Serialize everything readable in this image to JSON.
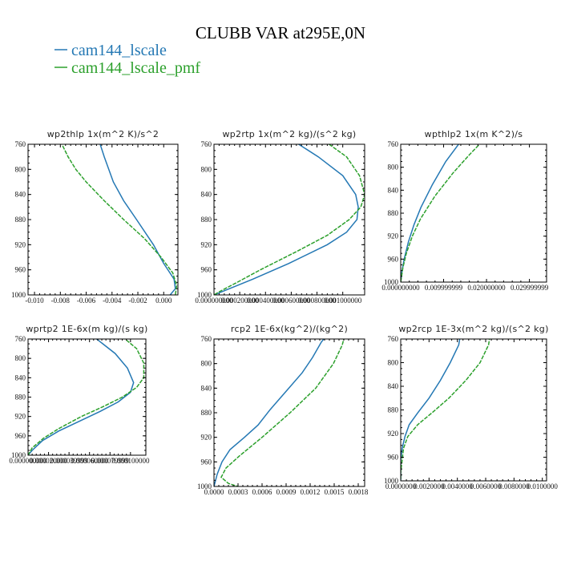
{
  "title": "CLUBB VAR at295E,0N",
  "legend": [
    {
      "name": "cam144_lscale",
      "color": "#2478b4",
      "dash": false
    },
    {
      "name": "cam144_lscale_pmf",
      "color": "#2ca02c",
      "dash": true
    }
  ],
  "chart_data": [
    {
      "type": "line",
      "title": "wp2thlp  1x(m^2 K)/s^2",
      "xlim": [
        -0.0105,
        0.0011
      ],
      "ylim": [
        760,
        1000
      ],
      "y_reversed": true,
      "xticks": [
        -0.01,
        -0.008,
        -0.006,
        -0.004,
        -0.002,
        0.0
      ],
      "xtick_labels": [
        "-0.010",
        "-0.008",
        "-0.006",
        "-0.004",
        "-0.002",
        "0.000"
      ],
      "yticks": [
        760,
        800,
        840,
        880,
        920,
        960,
        1000
      ],
      "series": [
        {
          "name": "cam144_lscale",
          "y": [
            755,
            780,
            820,
            850,
            880,
            920,
            950,
            975,
            990,
            1000
          ],
          "x": [
            -0.005,
            -0.0046,
            -0.0039,
            -0.0031,
            -0.0021,
            -0.0008,
            0.0,
            0.0008,
            0.0009,
            0.0005
          ]
        },
        {
          "name": "cam144_lscale_pmf",
          "y": [
            755,
            780,
            800,
            820,
            850,
            880,
            910,
            940,
            965,
            985,
            1000
          ],
          "x": [
            -0.008,
            -0.0074,
            -0.0068,
            -0.006,
            -0.0046,
            -0.0031,
            -0.0015,
            -0.0002,
            0.0007,
            0.001,
            0.0009
          ]
        }
      ]
    },
    {
      "type": "line",
      "title": "wp2rtp  1x(m^2 kg)/(s^2 kg)",
      "xlim": [
        0,
        0.00117
      ],
      "ylim": [
        760,
        1000
      ],
      "y_reversed": true,
      "xticks": [
        0,
        0.0002,
        0.0004,
        0.0006,
        0.0008,
        0.001
      ],
      "xtick_labels": [
        "0.000000000",
        "0.000200000",
        "0.000400000",
        "0.000600000",
        "0.000800000",
        "0.001000000"
      ],
      "yticks": [
        760,
        800,
        840,
        880,
        920,
        960,
        1000
      ],
      "series": [
        {
          "name": "cam144_lscale",
          "y": [
            755,
            780,
            810,
            840,
            860,
            880,
            900,
            920,
            950,
            975,
            990,
            1000
          ],
          "x": [
            0.00062,
            0.00081,
            0.001,
            0.0011,
            0.00112,
            0.00111,
            0.00103,
            0.00088,
            0.00058,
            0.0003,
            0.00012,
            0.0
          ]
        },
        {
          "name": "cam144_lscale_pmf",
          "y": [
            755,
            780,
            810,
            840,
            860,
            880,
            905,
            930,
            960,
            980,
            995,
            1000
          ],
          "x": [
            0.00086,
            0.00103,
            0.00113,
            0.00117,
            0.00114,
            0.00105,
            0.00088,
            0.00065,
            0.00036,
            0.00018,
            4e-05,
            0.0
          ]
        }
      ]
    },
    {
      "type": "line",
      "title": "wpthlp2  1x(m K^2)/s",
      "xlim": [
        0,
        0.034
      ],
      "ylim": [
        760,
        1000
      ],
      "y_reversed": true,
      "xticks": [
        0,
        0.01,
        0.02,
        0.03
      ],
      "xtick_labels": [
        "0.000000000",
        "0.009999999",
        "0.020000000",
        "0.029999999"
      ],
      "yticks": [
        760,
        800,
        840,
        880,
        920,
        960,
        1000
      ],
      "series": [
        {
          "name": "cam144_lscale",
          "y": [
            755,
            790,
            830,
            870,
            900,
            930,
            960,
            985,
            1000
          ],
          "x": [
            0.014,
            0.0105,
            0.0074,
            0.0047,
            0.0031,
            0.0018,
            0.0008,
            0.0002,
            0.0
          ]
        },
        {
          "name": "cam144_lscale_pmf",
          "y": [
            755,
            780,
            810,
            850,
            890,
            920,
            950,
            975,
            990,
            1000
          ],
          "x": [
            0.019,
            0.0158,
            0.0122,
            0.008,
            0.0046,
            0.0027,
            0.0013,
            0.0005,
            0.0002,
            0.0
          ]
        }
      ]
    },
    {
      "type": "line",
      "title": "wprtp2  1E-6x(m kg)/(s kg)",
      "xlim": [
        0,
        0.000115
      ],
      "ylim": [
        760,
        1000
      ],
      "y_reversed": true,
      "xticks": [
        0,
        2e-05,
        4e-05,
        6e-05,
        8e-05,
        0.0001
      ],
      "xtick_labels": [
        "0.000000000",
        "0.000020000",
        "0.000039999",
        "0.000060000",
        "0.000079999",
        "0.000100000"
      ],
      "yticks": [
        760,
        800,
        840,
        880,
        920,
        960,
        1000
      ],
      "series": [
        {
          "name": "cam144_lscale",
          "y": [
            755,
            790,
            820,
            850,
            870,
            890,
            910,
            930,
            950,
            970,
            990,
            1000
          ],
          "x": [
            6.4e-05,
            8.5e-05,
            9.7e-05,
            0.000103,
            0.0001,
            8.8e-05,
            7e-05,
            5e-05,
            3e-05,
            1.4e-05,
            4e-06,
            0.0
          ]
        },
        {
          "name": "cam144_lscale_pmf",
          "y": [
            755,
            780,
            810,
            840,
            860,
            880,
            900,
            920,
            945,
            965,
            985,
            1000
          ],
          "x": [
            9.2e-05,
            0.000106,
            0.000113,
            0.000113,
            0.000106,
            9.2e-05,
            7.3e-05,
            5.2e-05,
            3e-05,
            1.5e-05,
            4e-06,
            0.0
          ]
        }
      ]
    },
    {
      "type": "line",
      "title": "rcp2  1E-6x(kg^2)/(kg^2)",
      "xlim": [
        0,
        0.00188
      ],
      "ylim": [
        760,
        1000
      ],
      "y_reversed": true,
      "xticks": [
        0,
        0.0003,
        0.0006,
        0.0009,
        0.0012,
        0.0015,
        0.0018
      ],
      "xtick_labels": [
        "0.0000",
        "0.0003",
        "0.0006",
        "0.0009",
        "0.0012",
        "0.0015",
        "0.0018"
      ],
      "yticks": [
        760,
        800,
        840,
        880,
        920,
        960,
        1000
      ],
      "series": [
        {
          "name": "cam144_lscale",
          "y": [
            755,
            765,
            790,
            815,
            845,
            875,
            900,
            920,
            940,
            960,
            980,
            995,
            1000
          ],
          "x": [
            0.0014,
            0.00134,
            0.00123,
            0.0011,
            0.0009,
            0.0007,
            0.00055,
            0.00038,
            0.0002,
            0.0001,
            4e-05,
            1e-05,
            0.0
          ]
        },
        {
          "name": "cam144_lscale_pmf",
          "y": [
            755,
            770,
            800,
            840,
            880,
            920,
            950,
            970,
            985,
            995,
            1000
          ],
          "x": [
            0.00163,
            0.0016,
            0.00149,
            0.00127,
            0.00095,
            0.0006,
            0.00032,
            0.00015,
            9e-05,
            0.00018,
            0.0003
          ]
        }
      ]
    },
    {
      "type": "line",
      "title": "wp2rcp  1E-3x(m^2 kg)/(s^2 kg)",
      "xlim": [
        0,
        0.0103
      ],
      "ylim": [
        760,
        1000
      ],
      "y_reversed": true,
      "xticks": [
        0,
        0.002,
        0.004,
        0.006,
        0.008,
        0.01
      ],
      "xtick_labels": [
        "0.0000000",
        "0.0020000",
        "0.0040000",
        "0.0060000",
        "0.0080000",
        "0.0100000"
      ],
      "yticks": [
        760,
        800,
        840,
        880,
        920,
        960,
        1000
      ],
      "series": [
        {
          "name": "cam144_lscale",
          "y": [
            755,
            770,
            800,
            830,
            860,
            885,
            905,
            925,
            945,
            965,
            985,
            1000
          ],
          "x": [
            0.0042,
            0.0041,
            0.0035,
            0.0028,
            0.002,
            0.0012,
            0.0006,
            0.0003,
            0.0001,
            0.0,
            0.0,
            0.0
          ]
        },
        {
          "name": "cam144_lscale_pmf",
          "y": [
            755,
            770,
            800,
            830,
            860,
            885,
            905,
            925,
            945,
            965,
            985,
            1000
          ],
          "x": [
            0.0063,
            0.0062,
            0.0056,
            0.0046,
            0.0034,
            0.0022,
            0.0012,
            0.0005,
            0.0002,
            0.0001,
            0.0,
            0.0
          ]
        }
      ]
    }
  ]
}
